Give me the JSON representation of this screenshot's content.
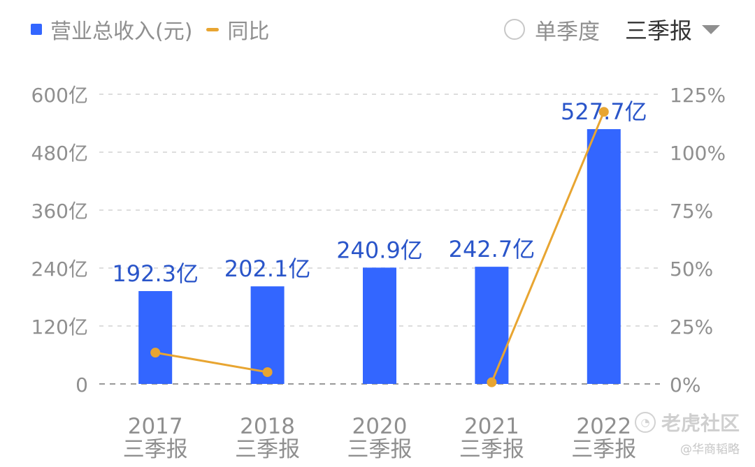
{
  "legend": {
    "revenue_label": "营业总收入(元)",
    "yoy_label": "同比"
  },
  "controls": {
    "single_quarter_label": "单季度",
    "period_selected": "三季报"
  },
  "watermark": {
    "main": "老虎社区",
    "sub": "@华商韬略"
  },
  "colors": {
    "bar": "#3366ff",
    "line": "#e8a531",
    "value_label": "#2a55c9",
    "axis_text": "#8f8f8f",
    "grid": "#dddddd"
  },
  "chart_data": {
    "type": "bar",
    "categories": [
      "2017\n三季报",
      "2018\n三季报",
      "2020\n三季报",
      "2021\n三季报",
      "2022\n三季报"
    ],
    "series": [
      {
        "name": "营业总收入(元)",
        "type": "bar",
        "axis": "left",
        "unit": "亿",
        "values": [
          192.3,
          202.1,
          240.9,
          242.7,
          527.7
        ],
        "labels": [
          "192.3亿",
          "202.1亿",
          "240.9亿",
          "242.7亿",
          "527.7亿"
        ]
      },
      {
        "name": "同比",
        "type": "line",
        "axis": "right",
        "unit": "%",
        "values": [
          13.5,
          5.1,
          null,
          0.7,
          117.4
        ]
      }
    ],
    "y_left": {
      "ylim": [
        0,
        600
      ],
      "ticks": [
        "0",
        "120亿",
        "240亿",
        "360亿",
        "480亿",
        "600亿"
      ]
    },
    "y_right": {
      "ylim": [
        0,
        125
      ],
      "ticks": [
        "0%",
        "25%",
        "50%",
        "75%",
        "100%",
        "125%"
      ]
    },
    "grid": true,
    "legend": "top-left"
  }
}
